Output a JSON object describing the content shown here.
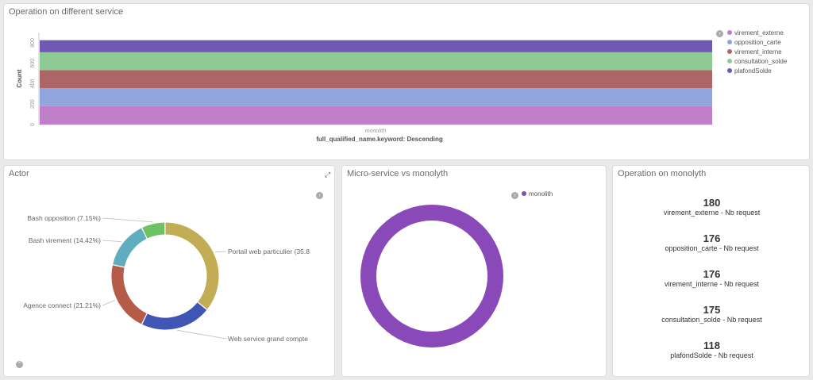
{
  "panel1": {
    "title": "Operation on different service",
    "chart_data": {
      "type": "bar",
      "stacked": true,
      "categories": [
        "monolith"
      ],
      "xlabel": "full_qualified_name.keyword: Descending",
      "ylabel": "Count",
      "ylim": [
        0,
        900
      ],
      "yticks": [
        0,
        200,
        400,
        600,
        800
      ],
      "series": [
        {
          "name": "virement_externe",
          "values": [
            180
          ],
          "color": "#c07fc9"
        },
        {
          "name": "opposition_carte",
          "values": [
            176
          ],
          "color": "#8fa5dc"
        },
        {
          "name": "virement_interne",
          "values": [
            176
          ],
          "color": "#ad6566"
        },
        {
          "name": "consultation_solde",
          "values": [
            175
          ],
          "color": "#8fca94"
        },
        {
          "name": "plafondSolde",
          "values": [
            118
          ],
          "color": "#7059b5"
        }
      ]
    }
  },
  "panel2": {
    "title": "Actor",
    "chart_data": {
      "type": "pie",
      "donut": true,
      "slices": [
        {
          "label": "Portail web particulier (35.8",
          "value": 35.8,
          "color": "#c2ad54"
        },
        {
          "label": "Web service grand compte",
          "value": 21.42,
          "color": "#3f56b5"
        },
        {
          "label": "Agence connect (21.21%)",
          "value": 21.21,
          "color": "#b65b48"
        },
        {
          "label": "Bash virement (14.42%)",
          "value": 14.42,
          "color": "#5faec0"
        },
        {
          "label": "Bash opposition (7.15%)",
          "value": 7.15,
          "color": "#6fc264"
        }
      ]
    }
  },
  "panel3": {
    "title": "Micro-service vs monolyth",
    "chart_data": {
      "type": "pie",
      "donut": true,
      "slices": [
        {
          "label": "monolith",
          "value": 100,
          "color": "#8a49b9"
        }
      ]
    }
  },
  "panel4": {
    "title": "Operation on monolyth",
    "metrics": [
      {
        "value": "180",
        "label": "virement_externe - Nb request"
      },
      {
        "value": "176",
        "label": "opposition_carte - Nb request"
      },
      {
        "value": "176",
        "label": "virement_interne - Nb request"
      },
      {
        "value": "175",
        "label": "consultation_solde - Nb request"
      },
      {
        "value": "118",
        "label": "plafondSolde - Nb request"
      }
    ]
  },
  "icons": {
    "legend_toggle": "chevron-right-icon",
    "legend_toggle_left": "chevron-left-icon",
    "expand": "expand-icon",
    "collapse": "chevron-up-icon"
  }
}
